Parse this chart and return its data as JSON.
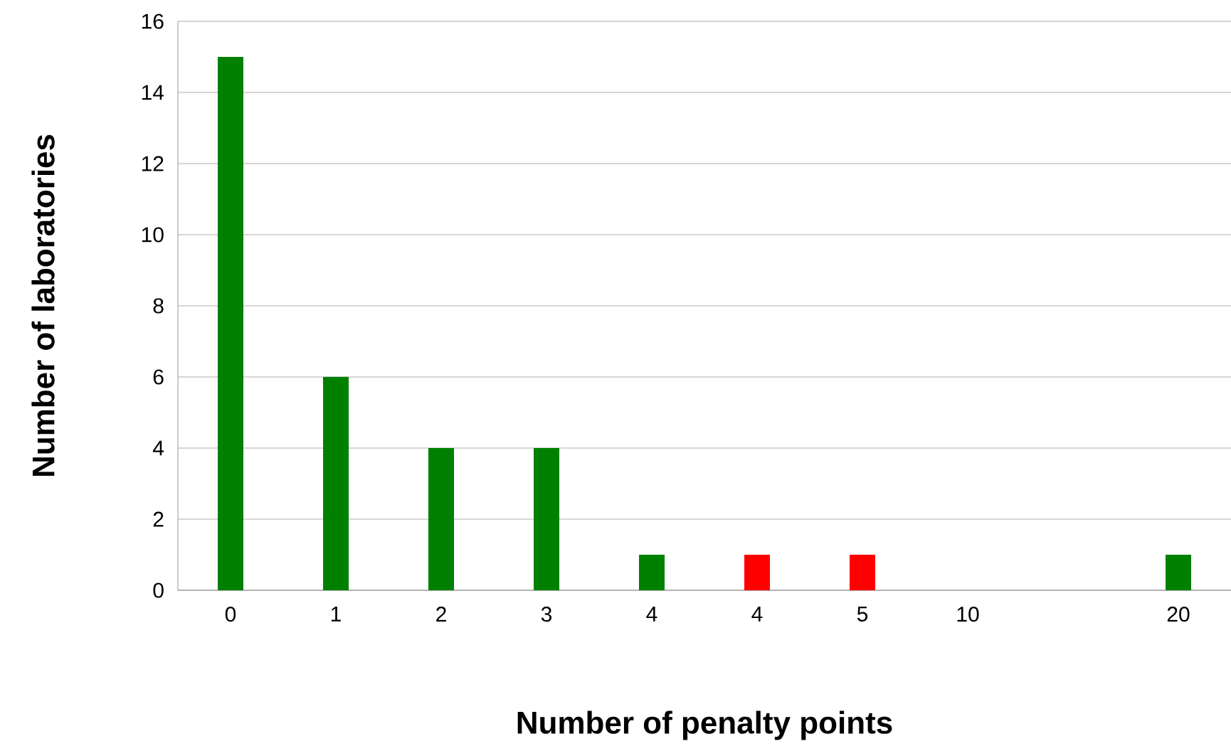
{
  "chart_data": {
    "type": "bar",
    "xlabel": "Number of penalty points",
    "ylabel": "Number of laboratories",
    "categories": [
      "0",
      "1",
      "2",
      "3",
      "4",
      "4",
      "5",
      "10",
      null,
      "20"
    ],
    "values": [
      15,
      6,
      4,
      4,
      1,
      1,
      1,
      0,
      0,
      1
    ],
    "colors": [
      "#008000",
      "#008000",
      "#008000",
      "#008000",
      "#008000",
      "#ff0000",
      "#ff0000",
      "#008000",
      "#008000",
      "#008000"
    ],
    "ylim": [
      0,
      16
    ],
    "yticks": [
      0,
      2,
      4,
      6,
      8,
      10,
      12,
      14,
      16
    ],
    "grid": "y"
  }
}
